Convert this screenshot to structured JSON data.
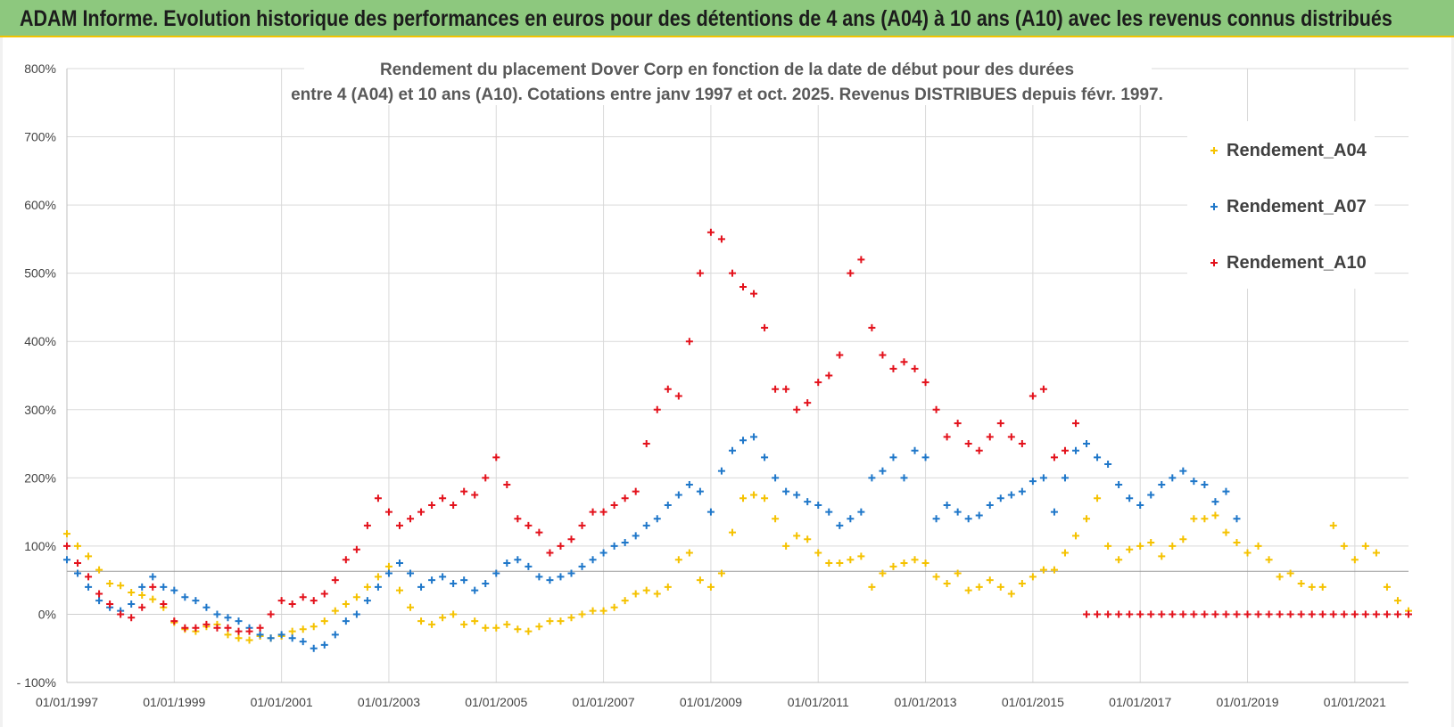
{
  "header": {
    "title": "ADAM Informe. Evolution historique des performances en euros pour des détentions de 4 ans (A04) à 10 ans (A10) avec les revenus connus distribués"
  },
  "chart_data": {
    "type": "scatter",
    "title_lines": [
      "Rendement du placement Dover Corp en fonction de la date de début pour des durées",
      "entre 4 (A04) et 10 ans (A10). Cotations entre janv 1997 et oct. 2025. Revenus DISTRIBUES depuis févr. 1997."
    ],
    "xlabel": "",
    "ylabel": "",
    "x_unit": "year",
    "xlim": [
      1997.0,
      2022.0
    ],
    "ylim": [
      -100,
      800
    ],
    "grid": true,
    "legend_position": "top-right",
    "x_tick_labels": [
      "01/01/1997",
      "01/01/1999",
      "01/01/2001",
      "01/01/2003",
      "01/01/2005",
      "01/01/2007",
      "01/01/2009",
      "01/01/2011",
      "01/01/2013",
      "01/01/2015",
      "01/01/2017",
      "01/01/2019",
      "01/01/2021"
    ],
    "y_ticks": [
      -100,
      0,
      100,
      200,
      300,
      400,
      500,
      600,
      700,
      800
    ],
    "y_tick_labels": [
      "- 100%",
      "0%",
      "100%",
      "200%",
      "300%",
      "400%",
      "500%",
      "600%",
      "700%",
      "800%"
    ],
    "reference_line": {
      "y": 63
    },
    "series": [
      {
        "name": "Rendement_A04",
        "color": "#f5c200",
        "x": [
          1997.0,
          1997.2,
          1997.4,
          1997.6,
          1997.8,
          1998.0,
          1998.2,
          1998.4,
          1998.6,
          1998.8,
          1999.0,
          1999.2,
          1999.4,
          1999.6,
          1999.8,
          2000.0,
          2000.2,
          2000.4,
          2000.6,
          2000.8,
          2001.0,
          2001.2,
          2001.4,
          2001.6,
          2001.8,
          2002.0,
          2002.2,
          2002.4,
          2002.6,
          2002.8,
          2003.0,
          2003.2,
          2003.4,
          2003.6,
          2003.8,
          2004.0,
          2004.2,
          2004.4,
          2004.6,
          2004.8,
          2005.0,
          2005.2,
          2005.4,
          2005.6,
          2005.8,
          2006.0,
          2006.2,
          2006.4,
          2006.6,
          2006.8,
          2007.0,
          2007.2,
          2007.4,
          2007.6,
          2007.8,
          2008.0,
          2008.2,
          2008.4,
          2008.6,
          2008.8,
          2009.0,
          2009.2,
          2009.4,
          2009.6,
          2009.8,
          2010.0,
          2010.2,
          2010.4,
          2010.6,
          2010.8,
          2011.0,
          2011.2,
          2011.4,
          2011.6,
          2011.8,
          2012.0,
          2012.2,
          2012.4,
          2012.6,
          2012.8,
          2013.0,
          2013.2,
          2013.4,
          2013.6,
          2013.8,
          2014.0,
          2014.2,
          2014.4,
          2014.6,
          2014.8,
          2015.0,
          2015.2,
          2015.4,
          2015.6,
          2015.8,
          2016.0,
          2016.2,
          2016.4,
          2016.6,
          2016.8,
          2017.0,
          2017.2,
          2017.4,
          2017.6,
          2017.8,
          2018.0,
          2018.2,
          2018.4,
          2018.6,
          2018.8,
          2019.0,
          2019.2,
          2019.4,
          2019.6,
          2019.8,
          2020.0,
          2020.2,
          2020.4,
          2020.6,
          2020.8,
          2021.0,
          2021.2,
          2021.4,
          2021.6,
          2021.8,
          2022.0
        ],
        "values": [
          118,
          100,
          85,
          65,
          45,
          42,
          32,
          28,
          22,
          10,
          -12,
          -22,
          -25,
          -18,
          -15,
          -30,
          -35,
          -38,
          -32,
          -35,
          -32,
          -25,
          -22,
          -18,
          -10,
          5,
          15,
          25,
          40,
          55,
          70,
          35,
          10,
          -10,
          -15,
          -5,
          0,
          -15,
          -10,
          -20,
          -20,
          -15,
          -22,
          -25,
          -18,
          -10,
          -10,
          -5,
          0,
          5,
          5,
          10,
          20,
          30,
          35,
          30,
          40,
          80,
          90,
          50,
          40,
          60,
          120,
          170,
          175,
          170,
          140,
          100,
          115,
          110,
          90,
          75,
          75,
          80,
          85,
          40,
          60,
          70,
          75,
          80,
          75,
          55,
          45,
          60,
          35,
          40,
          50,
          40,
          30,
          45,
          55,
          65,
          65,
          90,
          115,
          140,
          170,
          100,
          80,
          95,
          100,
          105,
          85,
          100,
          110,
          140,
          140,
          145,
          120,
          105,
          90,
          100,
          80,
          55,
          60,
          45,
          40,
          40,
          130,
          100,
          80,
          100,
          90,
          40,
          20,
          5
        ]
      },
      {
        "name": "Rendement_A07",
        "color": "#1f77c9",
        "x": [
          1997.0,
          1997.2,
          1997.4,
          1997.6,
          1997.8,
          1998.0,
          1998.2,
          1998.4,
          1998.6,
          1998.8,
          1999.0,
          1999.2,
          1999.4,
          1999.6,
          1999.8,
          2000.0,
          2000.2,
          2000.4,
          2000.6,
          2000.8,
          2001.0,
          2001.2,
          2001.4,
          2001.6,
          2001.8,
          2002.0,
          2002.2,
          2002.4,
          2002.6,
          2002.8,
          2003.0,
          2003.2,
          2003.4,
          2003.6,
          2003.8,
          2004.0,
          2004.2,
          2004.4,
          2004.6,
          2004.8,
          2005.0,
          2005.2,
          2005.4,
          2005.6,
          2005.8,
          2006.0,
          2006.2,
          2006.4,
          2006.6,
          2006.8,
          2007.0,
          2007.2,
          2007.4,
          2007.6,
          2007.8,
          2008.0,
          2008.2,
          2008.4,
          2008.6,
          2008.8,
          2009.0,
          2009.2,
          2009.4,
          2009.6,
          2009.8,
          2010.0,
          2010.2,
          2010.4,
          2010.6,
          2010.8,
          2011.0,
          2011.2,
          2011.4,
          2011.6,
          2011.8,
          2012.0,
          2012.2,
          2012.4,
          2012.6,
          2012.8,
          2013.0,
          2013.2,
          2013.4,
          2013.6,
          2013.8,
          2014.0,
          2014.2,
          2014.4,
          2014.6,
          2014.8,
          2015.0,
          2015.2,
          2015.4,
          2015.6,
          2015.8,
          2016.0,
          2016.2,
          2016.4,
          2016.6,
          2016.8,
          2017.0,
          2017.2,
          2017.4,
          2017.6,
          2017.8,
          2018.0,
          2018.2,
          2018.4,
          2018.6,
          2018.8
        ],
        "values": [
          80,
          60,
          40,
          20,
          10,
          5,
          15,
          40,
          55,
          40,
          35,
          25,
          20,
          10,
          0,
          -5,
          -10,
          -20,
          -30,
          -35,
          -30,
          -35,
          -40,
          -50,
          -45,
          -30,
          -10,
          0,
          20,
          40,
          60,
          75,
          60,
          40,
          50,
          55,
          45,
          50,
          35,
          45,
          60,
          75,
          80,
          70,
          55,
          50,
          55,
          60,
          70,
          80,
          90,
          100,
          105,
          115,
          130,
          140,
          160,
          175,
          190,
          180,
          150,
          210,
          240,
          255,
          260,
          230,
          200,
          180,
          175,
          165,
          160,
          150,
          130,
          140,
          150,
          200,
          210,
          230,
          200,
          240,
          230,
          140,
          160,
          150,
          140,
          145,
          160,
          170,
          175,
          180,
          195,
          200,
          150,
          200,
          240,
          250,
          230,
          220,
          190,
          170,
          160,
          175,
          190,
          200,
          210,
          195,
          190,
          165,
          180,
          140
        ]
      },
      {
        "name": "Rendement_A10",
        "color": "#e3121c",
        "x": [
          1997.0,
          1997.2,
          1997.4,
          1997.6,
          1997.8,
          1998.0,
          1998.2,
          1998.4,
          1998.6,
          1998.8,
          1999.0,
          1999.2,
          1999.4,
          1999.6,
          1999.8,
          2000.0,
          2000.2,
          2000.4,
          2000.6,
          2000.8,
          2001.0,
          2001.2,
          2001.4,
          2001.6,
          2001.8,
          2002.0,
          2002.2,
          2002.4,
          2002.6,
          2002.8,
          2003.0,
          2003.2,
          2003.4,
          2003.6,
          2003.8,
          2004.0,
          2004.2,
          2004.4,
          2004.6,
          2004.8,
          2005.0,
          2005.2,
          2005.4,
          2005.6,
          2005.8,
          2006.0,
          2006.2,
          2006.4,
          2006.6,
          2006.8,
          2007.0,
          2007.2,
          2007.4,
          2007.6,
          2007.8,
          2008.0,
          2008.2,
          2008.4,
          2008.6,
          2008.8,
          2009.0,
          2009.2,
          2009.4,
          2009.6,
          2009.8,
          2010.0,
          2010.2,
          2010.4,
          2010.6,
          2010.8,
          2011.0,
          2011.2,
          2011.4,
          2011.6,
          2011.8,
          2012.0,
          2012.2,
          2012.4,
          2012.6,
          2012.8,
          2013.0,
          2013.2,
          2013.4,
          2013.6,
          2013.8,
          2014.0,
          2014.2,
          2014.4,
          2014.6,
          2014.8,
          2015.0,
          2015.2,
          2015.4,
          2015.6,
          2015.8,
          2016.0,
          2016.2,
          2016.4,
          2016.6,
          2016.8,
          2017.0,
          2017.2,
          2017.4,
          2017.6,
          2017.8,
          2018.0,
          2018.2,
          2018.4,
          2018.6,
          2018.8,
          2019.0,
          2019.2,
          2019.4,
          2019.6,
          2019.8,
          2020.0,
          2020.2,
          2020.4,
          2020.6,
          2020.8,
          2021.0,
          2021.2,
          2021.4,
          2021.6,
          2021.8,
          2022.0
        ],
        "values": [
          100,
          75,
          55,
          30,
          15,
          0,
          -5,
          10,
          40,
          15,
          -10,
          -20,
          -20,
          -15,
          -20,
          -20,
          -25,
          -25,
          -20,
          0,
          20,
          15,
          25,
          20,
          30,
          50,
          80,
          95,
          130,
          170,
          150,
          130,
          140,
          150,
          160,
          170,
          160,
          180,
          175,
          200,
          230,
          190,
          140,
          130,
          120,
          90,
          100,
          110,
          130,
          150,
          150,
          160,
          170,
          180,
          250,
          300,
          330,
          320,
          400,
          500,
          560,
          550,
          500,
          480,
          470,
          420,
          330,
          330,
          300,
          310,
          340,
          350,
          380,
          500,
          520,
          420,
          380,
          360,
          370,
          360,
          340,
          300,
          260,
          280,
          250,
          240,
          260,
          280,
          260,
          250,
          320,
          330,
          230,
          240,
          280,
          0,
          0,
          0,
          0,
          0,
          0,
          0,
          0,
          0,
          0,
          0,
          0,
          0,
          0,
          0,
          0,
          0,
          0,
          0,
          0,
          0,
          0,
          0,
          0,
          0,
          0,
          0,
          0,
          0,
          0,
          0
        ]
      }
    ]
  }
}
